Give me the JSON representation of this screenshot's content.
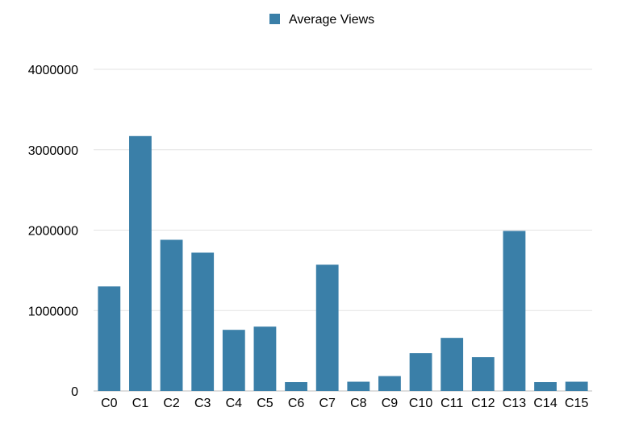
{
  "chart_data": {
    "type": "bar",
    "title": "",
    "xlabel": "",
    "ylabel": "",
    "legend": {
      "placement": "top-center",
      "entries": [
        "Average Views"
      ]
    },
    "grid": true,
    "ylim": [
      0,
      4000000
    ],
    "yticks": [
      0,
      1000000,
      2000000,
      3000000,
      4000000
    ],
    "categories": [
      "C0",
      "C1",
      "C2",
      "C3",
      "C4",
      "C5",
      "C6",
      "C7",
      "C8",
      "C9",
      "C10",
      "C11",
      "C12",
      "C13",
      "C14",
      "C15"
    ],
    "series": [
      {
        "name": "Average Views",
        "color": "#3a7fa8",
        "values": [
          1300000,
          3170000,
          1880000,
          1720000,
          760000,
          800000,
          110000,
          1570000,
          115000,
          185000,
          470000,
          660000,
          420000,
          1990000,
          110000,
          115000
        ]
      }
    ]
  }
}
